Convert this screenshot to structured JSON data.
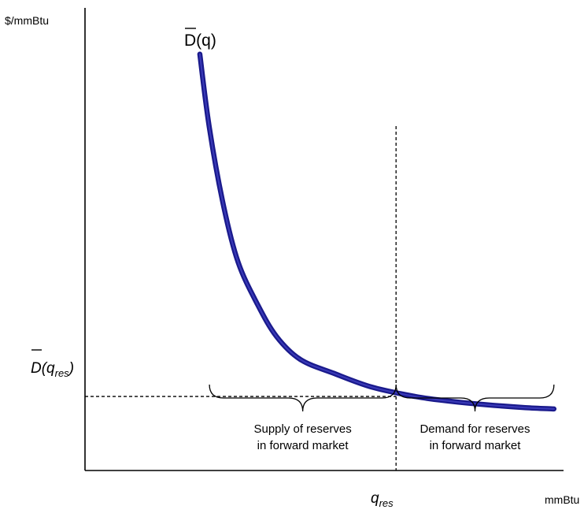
{
  "chart_data": {
    "type": "line",
    "title": "",
    "ylabel": "$/mmBtu",
    "xlabel": "mmBtu",
    "xlim": [
      0,
      100
    ],
    "ylim": [
      0,
      100
    ],
    "grid": false,
    "legend": "none",
    "series": [
      {
        "name": "D(q)",
        "color": "#1a1a8c",
        "x": [
          24,
          26,
          29,
          32,
          36,
          40,
          45,
          52,
          60,
          69,
          76,
          84,
          92,
          98
        ],
        "y": [
          90,
          74,
          57,
          45,
          36,
          29,
          24,
          21,
          18,
          16,
          15,
          14.2,
          13.6,
          13.3
        ]
      }
    ],
    "curve_label": {
      "text": "D",
      "arg": "(q)",
      "overbar": true
    },
    "reference": {
      "x": 65,
      "y": 16,
      "x_label_main": "q",
      "x_label_sub": "res",
      "y_label_main": "D(q",
      "y_label_sub": "res",
      "y_label_close": ")",
      "y_label_overbar": true
    },
    "braces": [
      {
        "from_x": 26,
        "to_x": 65,
        "lines": [
          "Supply of reserves",
          "in forward market"
        ]
      },
      {
        "from_x": 65,
        "to_x": 98,
        "lines": [
          "Demand for reserves",
          "in forward market"
        ]
      }
    ]
  }
}
